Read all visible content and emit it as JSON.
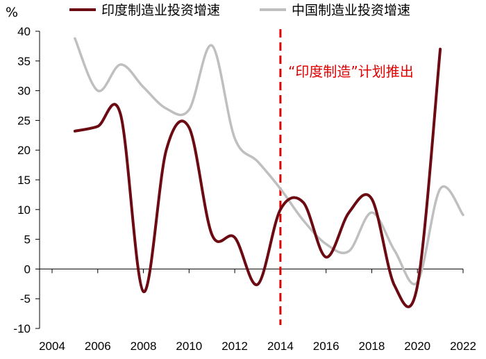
{
  "chart_data": {
    "type": "line",
    "ylabel": "%",
    "xlim": [
      2004,
      2022
    ],
    "ylim": [
      -10,
      40
    ],
    "x_ticks": [
      "2004",
      "2006",
      "2008",
      "2010",
      "2012",
      "2014",
      "2016",
      "2018",
      "2020",
      "2022"
    ],
    "y_ticks": [
      "40",
      "35",
      "30",
      "25",
      "20",
      "15",
      "10",
      "5",
      "0",
      "-5",
      "-10"
    ],
    "legend_position": "top",
    "series": [
      {
        "name": "印度制造业投资增速",
        "color": "#6b0a12",
        "x": [
          2005,
          2006,
          2007,
          2008,
          2009,
          2010,
          2011,
          2012,
          2013,
          2014,
          2015,
          2016,
          2017,
          2018,
          2019,
          2020,
          2021
        ],
        "values": [
          23.2,
          24.0,
          26.0,
          -3.8,
          20.0,
          23.8,
          5.8,
          5.3,
          -2.6,
          10.0,
          11.2,
          2.0,
          9.5,
          11.8,
          -2.8,
          -2.8,
          37.0
        ]
      },
      {
        "name": "中国制造业投资增速",
        "color": "#bfbfbf",
        "x": [
          2005,
          2006,
          2007,
          2008,
          2009,
          2010,
          2011,
          2012,
          2013,
          2014,
          2015,
          2016,
          2017,
          2018,
          2019,
          2020,
          2021,
          2022
        ],
        "values": [
          38.8,
          30.0,
          34.4,
          30.6,
          27.0,
          26.8,
          37.6,
          22.0,
          18.1,
          13.5,
          8.2,
          4.2,
          3.0,
          9.5,
          3.1,
          -2.2,
          13.5,
          9.1
        ]
      }
    ],
    "annotations": [
      {
        "x": 2014,
        "label": "“印度制造”计划推出",
        "line_color": "#e00000",
        "text_color": "#e00000"
      }
    ]
  }
}
